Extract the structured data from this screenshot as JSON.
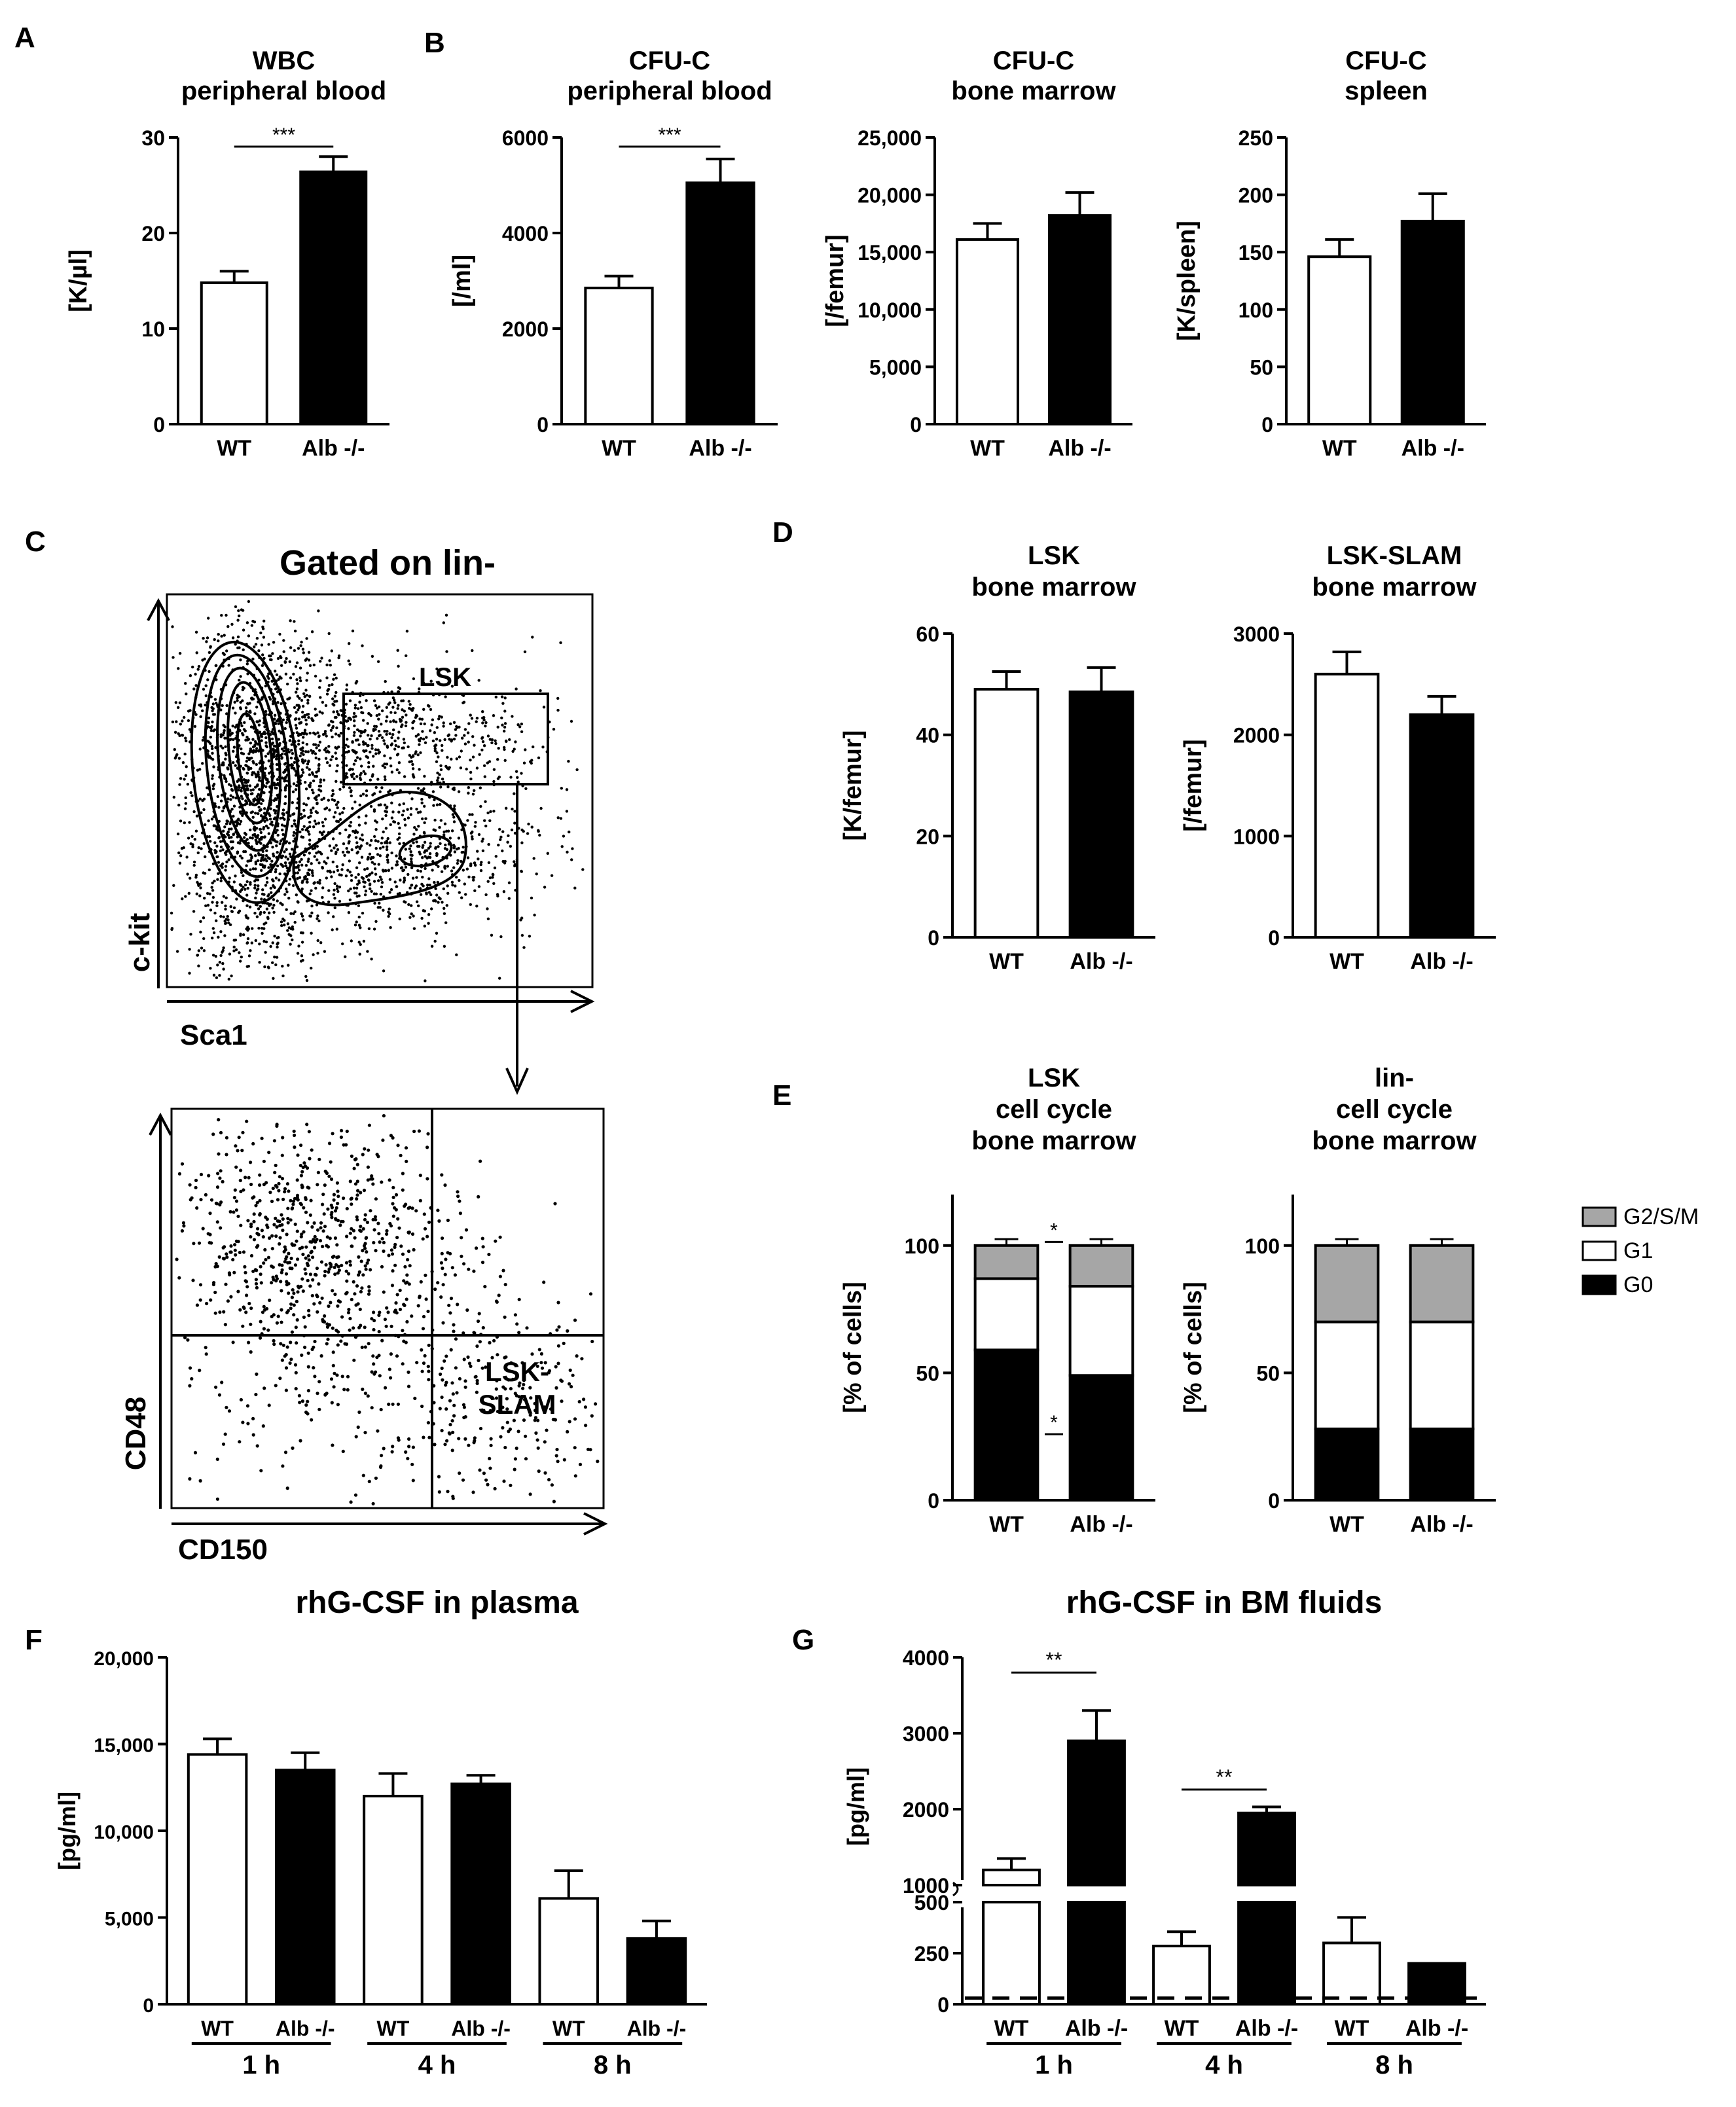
{
  "panel_labels": [
    "A",
    "B",
    "C",
    "D",
    "E",
    "F",
    "G"
  ],
  "colors": {
    "wt": "#ffffff",
    "alb": "#000000",
    "g2sm": "#a6a6a6",
    "g1": "#ffffff",
    "g0": "#000000"
  },
  "flow": {
    "title": "Gated on lin-",
    "top": {
      "xlabel": "Sca1",
      "ylabel": "c-kit",
      "gate_label": "LSK"
    },
    "bottom": {
      "xlabel": "CD150",
      "ylabel": "CD48",
      "gate_label_1": "LSK-",
      "gate_label_2": "SLAM"
    }
  },
  "legend": {
    "items": [
      "G2/S/M",
      "G1",
      "G0"
    ]
  },
  "chart_data": [
    {
      "id": "wbc",
      "type": "bar",
      "panel": "A",
      "title": [
        "WBC",
        "peripheral blood"
      ],
      "ylabel": "[K/µl]",
      "categories": [
        "WT",
        "Alb -/-"
      ],
      "values": [
        14.8,
        26.4
      ],
      "errors": [
        1.2,
        1.6
      ],
      "ylim": [
        0,
        30
      ],
      "yticks": [
        "0",
        "10",
        "20",
        "30"
      ],
      "sig": "***"
    },
    {
      "id": "cfu_pb",
      "type": "bar",
      "panel": "B",
      "title": [
        "CFU-C",
        "peripheral blood"
      ],
      "ylabel": "[/ml]",
      "categories": [
        "WT",
        "Alb -/-"
      ],
      "values": [
        2850,
        5050
      ],
      "errors": [
        250,
        500
      ],
      "ylim": [
        0,
        6000
      ],
      "yticks": [
        "0",
        "2000",
        "4000",
        "6000"
      ],
      "sig": "***"
    },
    {
      "id": "cfu_bm",
      "type": "bar",
      "title": [
        "CFU-C",
        "bone marrow"
      ],
      "ylabel": "[/femur]",
      "categories": [
        "WT",
        "Alb -/-"
      ],
      "values": [
        16100,
        18200
      ],
      "errors": [
        1400,
        2000
      ],
      "ylim": [
        0,
        25000
      ],
      "yticks": [
        "0",
        "5,000",
        "10,000",
        "15,000",
        "20,000",
        "25,000"
      ]
    },
    {
      "id": "cfu_sp",
      "type": "bar",
      "title": [
        "CFU-C",
        "spleen"
      ],
      "ylabel": "[K/spleen]",
      "categories": [
        "WT",
        "Alb -/-"
      ],
      "values": [
        146,
        177
      ],
      "errors": [
        15,
        24
      ],
      "ylim": [
        0,
        250
      ],
      "yticks": [
        "0",
        "50",
        "100",
        "150",
        "200",
        "250"
      ]
    },
    {
      "id": "lsk",
      "type": "bar",
      "panel": "D",
      "title": [
        "LSK",
        "bone marrow"
      ],
      "ylabel": "[K/femur]",
      "categories": [
        "WT",
        "Alb -/-"
      ],
      "values": [
        49,
        48.5
      ],
      "errors": [
        3.5,
        4.8
      ],
      "ylim": [
        0,
        60
      ],
      "yticks": [
        "0",
        "20",
        "40",
        "60"
      ]
    },
    {
      "id": "slam",
      "type": "bar",
      "title": [
        "LSK-SLAM",
        "bone marrow"
      ],
      "ylabel": "[/femur]",
      "categories": [
        "WT",
        "Alb -/-"
      ],
      "values": [
        2600,
        2200
      ],
      "errors": [
        220,
        180
      ],
      "ylim": [
        0,
        3000
      ],
      "yticks": [
        "0",
        "1000",
        "2000",
        "3000"
      ]
    },
    {
      "id": "lsk_cc",
      "type": "stacked_bar",
      "panel": "E",
      "title": [
        "LSK",
        "cell cycle",
        "bone marrow"
      ],
      "ylabel": "[% of cells]",
      "categories": [
        "WT",
        "Alb -/-"
      ],
      "series": [
        {
          "name": "G0",
          "values": [
            59,
            49
          ]
        },
        {
          "name": "G1",
          "values": [
            28,
            35
          ]
        },
        {
          "name": "G2/S/M",
          "values": [
            13,
            16
          ]
        }
      ],
      "ylim": [
        0,
        120
      ],
      "yticks": [
        "0",
        "50",
        "100"
      ],
      "sig": [
        "*",
        "*"
      ]
    },
    {
      "id": "lin_cc",
      "type": "stacked_bar",
      "title": [
        "lin-",
        "cell cycle",
        "bone marrow"
      ],
      "ylabel": "[% of cells]",
      "categories": [
        "WT",
        "Alb -/-"
      ],
      "series": [
        {
          "name": "G0",
          "values": [
            28,
            28
          ]
        },
        {
          "name": "G1",
          "values": [
            42,
            42
          ]
        },
        {
          "name": "G2/S/M",
          "values": [
            30,
            30
          ]
        }
      ],
      "ylim": [
        0,
        120
      ],
      "yticks": [
        "0",
        "50",
        "100"
      ]
    },
    {
      "id": "plasma",
      "type": "bar",
      "panel": "F",
      "title": [
        "rhG-CSF in plasma"
      ],
      "ylabel": "[pg/ml]",
      "categories": [
        "WT",
        "Alb -/-",
        "WT",
        "Alb -/-",
        "WT",
        "Alb -/-"
      ],
      "groups": [
        "1 h",
        "4 h",
        "8 h"
      ],
      "values": [
        14400,
        13500,
        12000,
        12700,
        6100,
        3800
      ],
      "errors": [
        900,
        1000,
        1300,
        500,
        1600,
        1000
      ],
      "ylim": [
        0,
        20000
      ],
      "yticks": [
        "0",
        "5,000",
        "10,000",
        "15,000",
        "20,000"
      ]
    },
    {
      "id": "bmf",
      "type": "bar",
      "panel": "G",
      "title": [
        "rhG-CSF in BM fluids"
      ],
      "ylabel": "[pg/ml]",
      "categories": [
        "WT",
        "Alb -/-",
        "WT",
        "Alb -/-",
        "WT",
        "Alb -/-"
      ],
      "groups": [
        "1 h",
        "4 h",
        "8 h"
      ],
      "values": [
        1200,
        2900,
        285,
        1950,
        300,
        200
      ],
      "errors": [
        150,
        400,
        70,
        80,
        125,
        0
      ],
      "axis_break": [
        500,
        1000
      ],
      "ylim": [
        0,
        4000
      ],
      "yticks_lower": [
        "0",
        "250",
        "500"
      ],
      "yticks_upper": [
        "1000",
        "2000",
        "3000",
        "4000"
      ],
      "detection_limit": 30,
      "sig": [
        "**",
        "**"
      ]
    }
  ]
}
